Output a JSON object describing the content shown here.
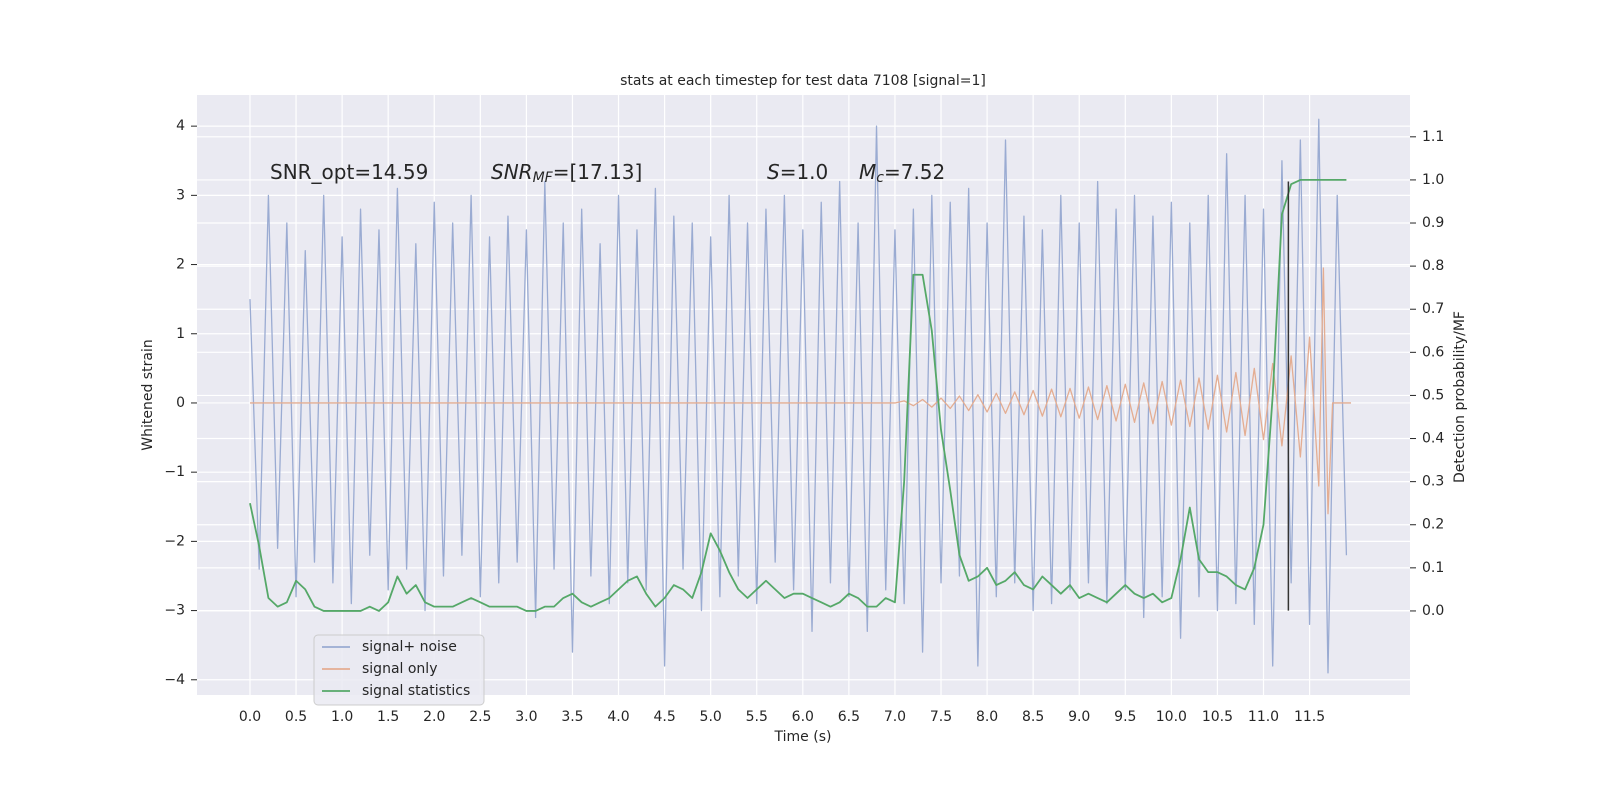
{
  "chart_data": {
    "type": "line",
    "title": "stats at each timestep for test data 7108 [signal=1]",
    "xlabel": "Time (s)",
    "ylabel": "Whitened strain",
    "y2label": "Detection probability/MF",
    "annotations": [
      {
        "text": "SNR_opt=14.59"
      },
      {
        "symbol": "SNR",
        "sub": "MF",
        "text": "=[17.13]"
      },
      {
        "symbol": "S",
        "text": "=1.0"
      },
      {
        "symbol": "M",
        "sub": "c",
        "text": "=7.52"
      }
    ],
    "xlim": [
      -0.575,
      12.59
    ],
    "ylim": [
      -4.22,
      4.45
    ],
    "y2lim": [
      -0.195,
      1.197
    ],
    "xticks": [
      {
        "value": 0,
        "label": "0.0"
      },
      0.5,
      {
        "value": 1,
        "label": "1.0"
      },
      1.5,
      {
        "value": 2,
        "label": "2.0"
      },
      2.5,
      {
        "value": 3,
        "label": "3.0"
      },
      3.5,
      {
        "value": 4,
        "label": "4.0"
      },
      4.5,
      {
        "value": 5,
        "label": "5.0"
      },
      5.5,
      {
        "value": 6,
        "label": "6.0"
      },
      6.5,
      {
        "value": 7,
        "label": "7.0"
      },
      7.5,
      {
        "value": 8,
        "label": "8.0"
      },
      8.5,
      {
        "value": 9,
        "label": "9.0"
      },
      9.5,
      {
        "value": 10,
        "label": "10.0"
      },
      10.5,
      {
        "value": 11,
        "label": "11.0"
      },
      11.5
    ],
    "yticks": [
      {
        "value": -4,
        "label": "−4"
      },
      {
        "value": -3,
        "label": "−3"
      },
      {
        "value": -2,
        "label": "−2"
      },
      {
        "value": -1,
        "label": "−1"
      },
      0,
      1,
      2,
      3,
      4
    ],
    "y2ticks": [
      {
        "value": 0,
        "label": "0.0"
      },
      0.1,
      0.2,
      0.3,
      0.4,
      0.5,
      0.6,
      0.7,
      0.8,
      0.9,
      {
        "value": 1,
        "label": "1.0"
      },
      1.1
    ],
    "grid": true,
    "legend": "lower left",
    "x": [
      0.0,
      0.1,
      0.2,
      0.3,
      0.4,
      0.5,
      0.6,
      0.7,
      0.8,
      0.9,
      1.0,
      1.1,
      1.2,
      1.3,
      1.4,
      1.5,
      1.6,
      1.7,
      1.8,
      1.9,
      2.0,
      2.1,
      2.2,
      2.3,
      2.4,
      2.5,
      2.6,
      2.7,
      2.8,
      2.9,
      3.0,
      3.1,
      3.2,
      3.3,
      3.4,
      3.5,
      3.6,
      3.7,
      3.8,
      3.9,
      4.0,
      4.1,
      4.2,
      4.3,
      4.4,
      4.5,
      4.6,
      4.7,
      4.8,
      4.9,
      5.0,
      5.1,
      5.2,
      5.3,
      5.4,
      5.5,
      5.6,
      5.7,
      5.8,
      5.9,
      6.0,
      6.1,
      6.2,
      6.3,
      6.4,
      6.5,
      6.6,
      6.7,
      6.8,
      6.9,
      7.0,
      7.1,
      7.2,
      7.3,
      7.4,
      7.5,
      7.6,
      7.7,
      7.8,
      7.9,
      8.0,
      8.1,
      8.2,
      8.3,
      8.4,
      8.5,
      8.6,
      8.7,
      8.8,
      8.9,
      9.0,
      9.1,
      9.2,
      9.3,
      9.4,
      9.5,
      9.6,
      9.7,
      9.8,
      9.9,
      10.0,
      10.1,
      10.2,
      10.3,
      10.4,
      10.5,
      10.6,
      10.7,
      10.8,
      10.9,
      11.0,
      11.1,
      11.2,
      11.3,
      11.4,
      11.5,
      11.6,
      11.7,
      11.8,
      11.9
    ],
    "series": [
      {
        "name": "signal+ noise",
        "color": "#9aabd2",
        "values": [
          1.5,
          -2.4,
          3.0,
          -2.1,
          2.6,
          -2.8,
          2.2,
          -2.3,
          3.0,
          -2.6,
          2.4,
          -2.9,
          2.8,
          -2.2,
          2.5,
          -2.7,
          3.1,
          -2.4,
          2.3,
          -3.0,
          2.9,
          -2.5,
          2.6,
          -2.2,
          3.0,
          -2.8,
          2.4,
          -2.6,
          2.7,
          -2.3,
          2.5,
          -3.1,
          3.2,
          -2.4,
          2.6,
          -3.6,
          2.8,
          -2.5,
          2.3,
          -2.9,
          3.0,
          -2.6,
          2.5,
          -2.7,
          3.1,
          -3.8,
          2.7,
          -2.4,
          2.6,
          -3.0,
          2.4,
          -2.8,
          3.0,
          -2.5,
          2.6,
          -2.9,
          2.8,
          -2.3,
          3.0,
          -2.7,
          2.5,
          -3.3,
          2.9,
          -2.6,
          3.2,
          -2.8,
          2.6,
          -3.3,
          4.0,
          -2.7,
          2.5,
          -2.9,
          2.8,
          -3.6,
          3.0,
          -2.6,
          2.9,
          -2.5,
          3.1,
          -3.8,
          2.6,
          -2.8,
          3.8,
          -2.6,
          2.7,
          -3.0,
          2.5,
          -2.9,
          3.0,
          -2.7,
          2.6,
          -2.6,
          3.2,
          -2.9,
          2.8,
          -2.7,
          3.0,
          -3.1,
          2.7,
          -2.8,
          2.9,
          -3.4,
          2.6,
          -2.8,
          3.0,
          -3.0,
          3.6,
          -2.9,
          3.0,
          -3.2,
          2.8,
          -3.8,
          3.5,
          -2.6,
          3.8,
          -3.2,
          4.1,
          -3.9,
          3.0,
          -2.2
        ]
      },
      {
        "name": "signal only",
        "color": "#e4ad92",
        "x": [
          0.0,
          7.0,
          7.1,
          7.2,
          7.3,
          7.4,
          7.5,
          7.6,
          7.7,
          7.8,
          7.9,
          8.0,
          8.1,
          8.2,
          8.3,
          8.4,
          8.5,
          8.6,
          8.7,
          8.8,
          8.9,
          9.0,
          9.1,
          9.2,
          9.3,
          9.4,
          9.5,
          9.6,
          9.7,
          9.8,
          9.9,
          10.0,
          10.1,
          10.2,
          10.3,
          10.4,
          10.5,
          10.6,
          10.7,
          10.8,
          10.9,
          11.0,
          11.1,
          11.2,
          11.3,
          11.4,
          11.5,
          11.6,
          11.65,
          11.7,
          11.75,
          11.95
        ],
        "values": [
          0,
          0,
          0.03,
          -0.04,
          0.05,
          -0.06,
          0.07,
          -0.08,
          0.1,
          -0.11,
          0.12,
          -0.13,
          0.14,
          -0.15,
          0.16,
          -0.17,
          0.18,
          -0.19,
          0.2,
          -0.2,
          0.21,
          -0.22,
          0.23,
          -0.24,
          0.25,
          -0.26,
          0.27,
          -0.28,
          0.29,
          -0.3,
          0.31,
          -0.32,
          0.33,
          -0.34,
          0.36,
          -0.38,
          0.4,
          -0.42,
          0.44,
          -0.47,
          0.5,
          -0.53,
          0.57,
          -0.62,
          0.68,
          -0.78,
          0.95,
          -1.2,
          1.95,
          -1.6,
          0,
          0
        ]
      },
      {
        "name": "signal statistics",
        "color": "#55a868",
        "axis": "y2",
        "values": [
          0.25,
          0.15,
          0.03,
          0.01,
          0.02,
          0.07,
          0.05,
          0.01,
          0.0,
          0.0,
          0.0,
          0.0,
          0.0,
          0.01,
          0.0,
          0.02,
          0.08,
          0.04,
          0.06,
          0.02,
          0.01,
          0.01,
          0.01,
          0.02,
          0.03,
          0.02,
          0.01,
          0.01,
          0.01,
          0.01,
          0.0,
          0.0,
          0.01,
          0.01,
          0.03,
          0.04,
          0.02,
          0.01,
          0.02,
          0.03,
          0.05,
          0.07,
          0.08,
          0.04,
          0.01,
          0.03,
          0.06,
          0.05,
          0.03,
          0.09,
          0.18,
          0.14,
          0.09,
          0.05,
          0.03,
          0.05,
          0.07,
          0.05,
          0.03,
          0.04,
          0.04,
          0.03,
          0.02,
          0.01,
          0.02,
          0.04,
          0.03,
          0.01,
          0.01,
          0.03,
          0.02,
          0.3,
          0.78,
          0.78,
          0.65,
          0.42,
          0.28,
          0.13,
          0.07,
          0.08,
          0.1,
          0.06,
          0.07,
          0.09,
          0.06,
          0.05,
          0.08,
          0.06,
          0.04,
          0.06,
          0.03,
          0.04,
          0.03,
          0.02,
          0.04,
          0.06,
          0.04,
          0.03,
          0.04,
          0.02,
          0.03,
          0.12,
          0.24,
          0.12,
          0.09,
          0.09,
          0.08,
          0.06,
          0.05,
          0.1,
          0.2,
          0.5,
          0.92,
          0.99,
          1.0,
          1.0,
          1.0,
          1.0,
          1.0,
          1.0
        ]
      }
    ],
    "vline": {
      "x": 11.27,
      "ymin": -3.0,
      "ymax": 3.2,
      "color": "#333333"
    }
  }
}
